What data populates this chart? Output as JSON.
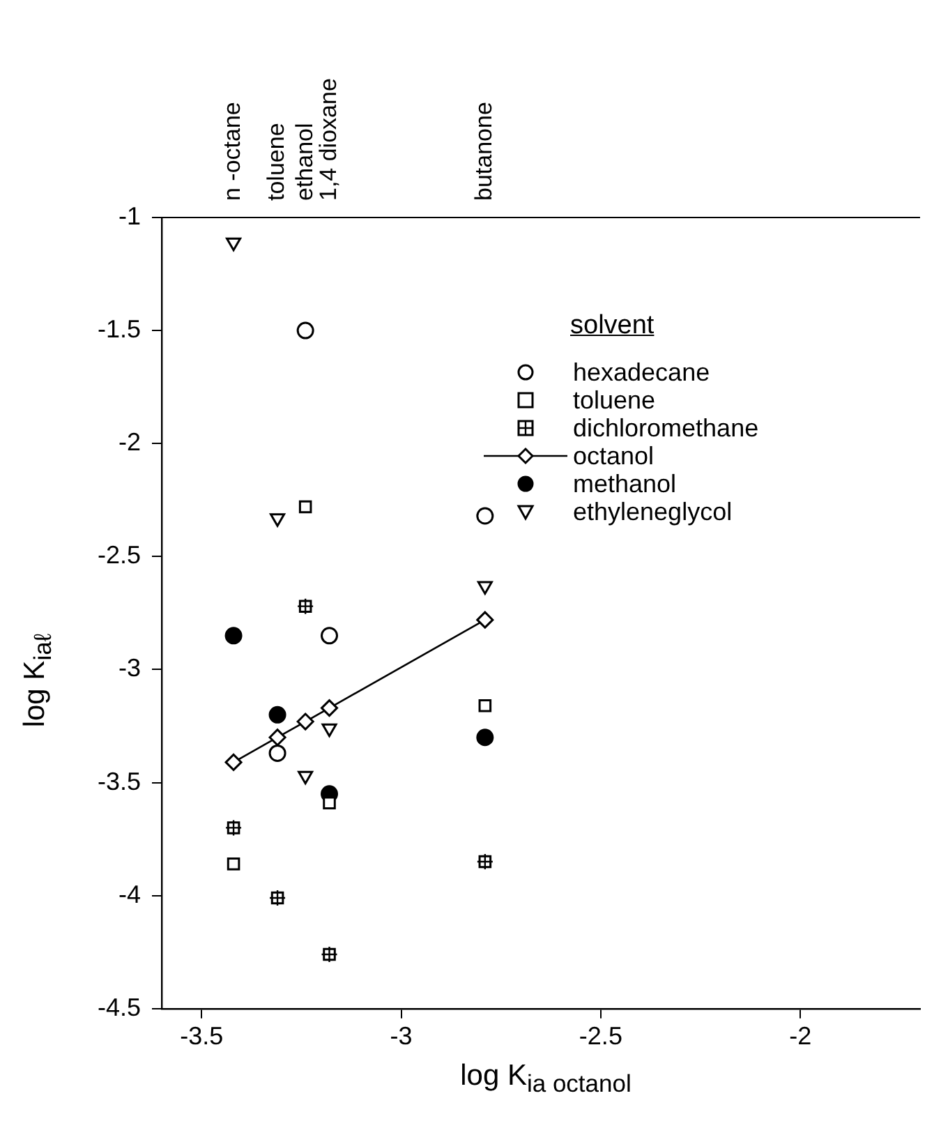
{
  "chart_data": {
    "type": "scatter",
    "xlabel": "log  $_{}$K$_{ia octanol}$",
    "ylabel": "log K$_{iaℓ}$",
    "legend_title": "solvent",
    "legend": "top right",
    "grid": false,
    "x": [
      -3.42,
      -3.31,
      -3.24,
      -3.18,
      -2.79
    ],
    "xlim": [
      -3.6,
      -1.7
    ],
    "xticks": [
      -3.5,
      -3,
      -2.5,
      -2
    ],
    "ylim": [
      -4.5,
      -1
    ],
    "yticks": [
      -4.5,
      -4,
      -3.5,
      -3,
      -2.5,
      -2,
      -1.5,
      -1
    ],
    "series": [
      {
        "name": "hexadecane",
        "color": "#000000",
        "marker": "circle",
        "values": [
          null,
          -3.37,
          -1.5,
          -2.85,
          -2.32
        ]
      },
      {
        "name": "toluene",
        "color": "#000000",
        "marker": "square",
        "values": [
          -3.86,
          null,
          -2.28,
          -3.59,
          -3.16
        ]
      },
      {
        "name": "dichloromethane",
        "color": "#000000",
        "marker": "square",
        "values": [
          -3.7,
          -4.01,
          -2.72,
          -4.26,
          -3.85
        ]
      },
      {
        "name": "octanol",
        "color": "#000000",
        "marker": "diamond",
        "type": "line",
        "line_style": "solid",
        "values": [
          -3.41,
          -3.3,
          -3.23,
          -3.17,
          -2.78
        ]
      },
      {
        "name": "methanol",
        "color": "#000000",
        "marker": "circle",
        "values": [
          -2.85,
          -3.2,
          null,
          -3.55,
          -3.3
        ]
      },
      {
        "name": "ethyleneglycol",
        "color": "#000000",
        "marker": "triangle",
        "values": [
          -1.11,
          -2.33,
          -3.47,
          -3.26,
          -2.63
        ]
      }
    ],
    "annotations": [
      "n -octane",
      "toluene",
      "ethanol",
      "1,4 dioxane",
      "butanone"
    ]
  }
}
